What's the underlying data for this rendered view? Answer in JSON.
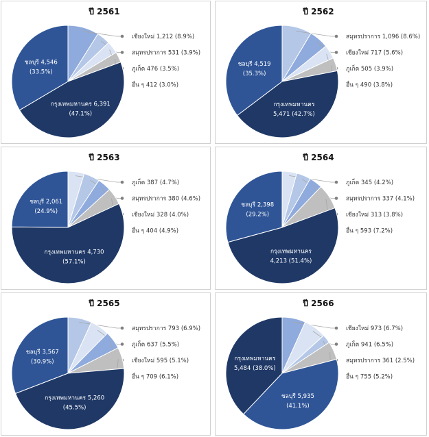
{
  "colors": {
    "bangkok": "#1f3866",
    "chonburi": "#2f5597",
    "chiangmai": "#8faadc",
    "samutprakan": "#b4c7e7",
    "phuket": "#dae3f3",
    "others": "#bfbfbf",
    "leader": "#a6a6a6",
    "dot": "#7f7f7f"
  },
  "chart_data": [
    {
      "type": "pie",
      "title": "ปี 2561",
      "slices": [
        {
          "key": "chiangmai",
          "name": "เชียงใหม่",
          "value": 1212,
          "value_text": "1,212",
          "pct": "8.9%",
          "label": "outside"
        },
        {
          "key": "samutprakan",
          "name": "สมุทรปราการ",
          "value": 531,
          "value_text": "531",
          "pct": "3.9%",
          "label": "outside"
        },
        {
          "key": "phuket",
          "name": "ภูเก็ต",
          "value": 476,
          "value_text": "476",
          "pct": "3.5%",
          "label": "outside"
        },
        {
          "key": "others",
          "name": "อื่น ๆ",
          "value": 412,
          "value_text": "412",
          "pct": "3.0%",
          "label": "outside"
        },
        {
          "key": "bangkok",
          "name": "กรุงเทพมหานคร",
          "value": 6391,
          "value_text": "6,391",
          "pct": "47.1%",
          "label": "inside-2"
        },
        {
          "key": "chonburi",
          "name": "ชลบุรี",
          "value": 4546,
          "value_text": "4,546",
          "pct": "33.5%",
          "label": "inside-2"
        }
      ]
    },
    {
      "type": "pie",
      "title": "ปี 2562",
      "slices": [
        {
          "key": "samutprakan",
          "name": "สมุทรปราการ",
          "value": 1096,
          "value_text": "1,096",
          "pct": "8.6%",
          "label": "outside"
        },
        {
          "key": "chiangmai",
          "name": "เชียงใหม่",
          "value": 717,
          "value_text": "717",
          "pct": "5.6%",
          "label": "outside"
        },
        {
          "key": "phuket",
          "name": "ภูเก็ต",
          "value": 505,
          "value_text": "505",
          "pct": "3.9%",
          "label": "outside"
        },
        {
          "key": "others",
          "name": "อื่น ๆ",
          "value": 490,
          "value_text": "490",
          "pct": "3.8%",
          "label": "outside"
        },
        {
          "key": "bangkok",
          "name": "กรุงเทพมหานคร",
          "value": 5471,
          "value_text": "5,471",
          "pct": "42.7%",
          "label": "inside-1"
        },
        {
          "key": "chonburi",
          "name": "ชลบุรี",
          "value": 4519,
          "value_text": "4,519",
          "pct": "35.3%",
          "label": "inside-2"
        }
      ]
    },
    {
      "type": "pie",
      "title": "ปี 2563",
      "slices": [
        {
          "key": "phuket",
          "name": "ภูเก็ต",
          "value": 387,
          "value_text": "387",
          "pct": "4.7%",
          "label": "outside"
        },
        {
          "key": "samutprakan",
          "name": "สมุทรปราการ",
          "value": 380,
          "value_text": "380",
          "pct": "4.6%",
          "label": "outside"
        },
        {
          "key": "chiangmai",
          "name": "เชียงใหม่",
          "value": 328,
          "value_text": "328",
          "pct": "4.0%",
          "label": "outside"
        },
        {
          "key": "others",
          "name": "อื่น ๆ",
          "value": 404,
          "value_text": "404",
          "pct": "4.9%",
          "label": "outside"
        },
        {
          "key": "bangkok",
          "name": "กรุงเทพมหานคร",
          "value": 4730,
          "value_text": "4,730",
          "pct": "57.1%",
          "label": "inside-2"
        },
        {
          "key": "chonburi",
          "name": "ชลบุรี",
          "value": 2061,
          "value_text": "2,061",
          "pct": "24.9%",
          "label": "inside-2"
        }
      ]
    },
    {
      "type": "pie",
      "title": "ปี 2564",
      "slices": [
        {
          "key": "phuket",
          "name": "ภูเก็ต",
          "value": 345,
          "value_text": "345",
          "pct": "4.2%",
          "label": "outside"
        },
        {
          "key": "samutprakan",
          "name": "สมุทรปราการ",
          "value": 337,
          "value_text": "337",
          "pct": "4.1%",
          "label": "outside"
        },
        {
          "key": "chiangmai",
          "name": "เชียงใหม่",
          "value": 313,
          "value_text": "313",
          "pct": "3.8%",
          "label": "outside"
        },
        {
          "key": "others",
          "name": "อื่น ๆ",
          "value": 593,
          "value_text": "593",
          "pct": "7.2%",
          "label": "outside"
        },
        {
          "key": "bangkok",
          "name": "กรุงเทพมหานคร",
          "value": 4213,
          "value_text": "4,213",
          "pct": "51.4%",
          "label": "inside-1"
        },
        {
          "key": "chonburi",
          "name": "ชลบุรี",
          "value": 2398,
          "value_text": "2,398",
          "pct": "29.2%",
          "label": "inside-2"
        }
      ]
    },
    {
      "type": "pie",
      "title": "ปี 2565",
      "slices": [
        {
          "key": "samutprakan",
          "name": "สมุทรปราการ",
          "value": 793,
          "value_text": "793",
          "pct": "6.9%",
          "label": "outside"
        },
        {
          "key": "phuket",
          "name": "ภูเก็ต",
          "value": 637,
          "value_text": "637",
          "pct": "5.5%",
          "label": "outside"
        },
        {
          "key": "chiangmai",
          "name": "เชียงใหม่",
          "value": 595,
          "value_text": "595",
          "pct": "5.1%",
          "label": "outside"
        },
        {
          "key": "others",
          "name": "อื่น ๆ",
          "value": 709,
          "value_text": "709",
          "pct": "6.1%",
          "label": "outside"
        },
        {
          "key": "bangkok",
          "name": "กรุงเทพมหานคร",
          "value": 5260,
          "value_text": "5,260",
          "pct": "45.5%",
          "label": "inside-2"
        },
        {
          "key": "chonburi",
          "name": "ชลบุรี",
          "value": 3567,
          "value_text": "3,567",
          "pct": "30.9%",
          "label": "inside-2"
        }
      ]
    },
    {
      "type": "pie",
      "title": "ปี 2566",
      "slices": [
        {
          "key": "chiangmai",
          "name": "เชียงใหม่",
          "value": 973,
          "value_text": "973",
          "pct": "6.7%",
          "label": "outside"
        },
        {
          "key": "phuket",
          "name": "ภูเก็ต",
          "value": 941,
          "value_text": "941",
          "pct": "6.5%",
          "label": "outside"
        },
        {
          "key": "samutprakan",
          "name": "สมุทรปราการ",
          "value": 361,
          "value_text": "361",
          "pct": "2.5%",
          "label": "outside"
        },
        {
          "key": "others",
          "name": "อื่น ๆ",
          "value": 755,
          "value_text": "755",
          "pct": "5.2%",
          "label": "outside"
        },
        {
          "key": "chonburi",
          "name": "ชลบุรี",
          "value": 5935,
          "value_text": "5,935",
          "pct": "41.1%",
          "label": "inside-2"
        },
        {
          "key": "bangkok",
          "name": "กรุงเทพมหานคร",
          "value": 5484,
          "value_text": "5,484",
          "pct": "38.0%",
          "label": "inside-1"
        }
      ]
    }
  ]
}
